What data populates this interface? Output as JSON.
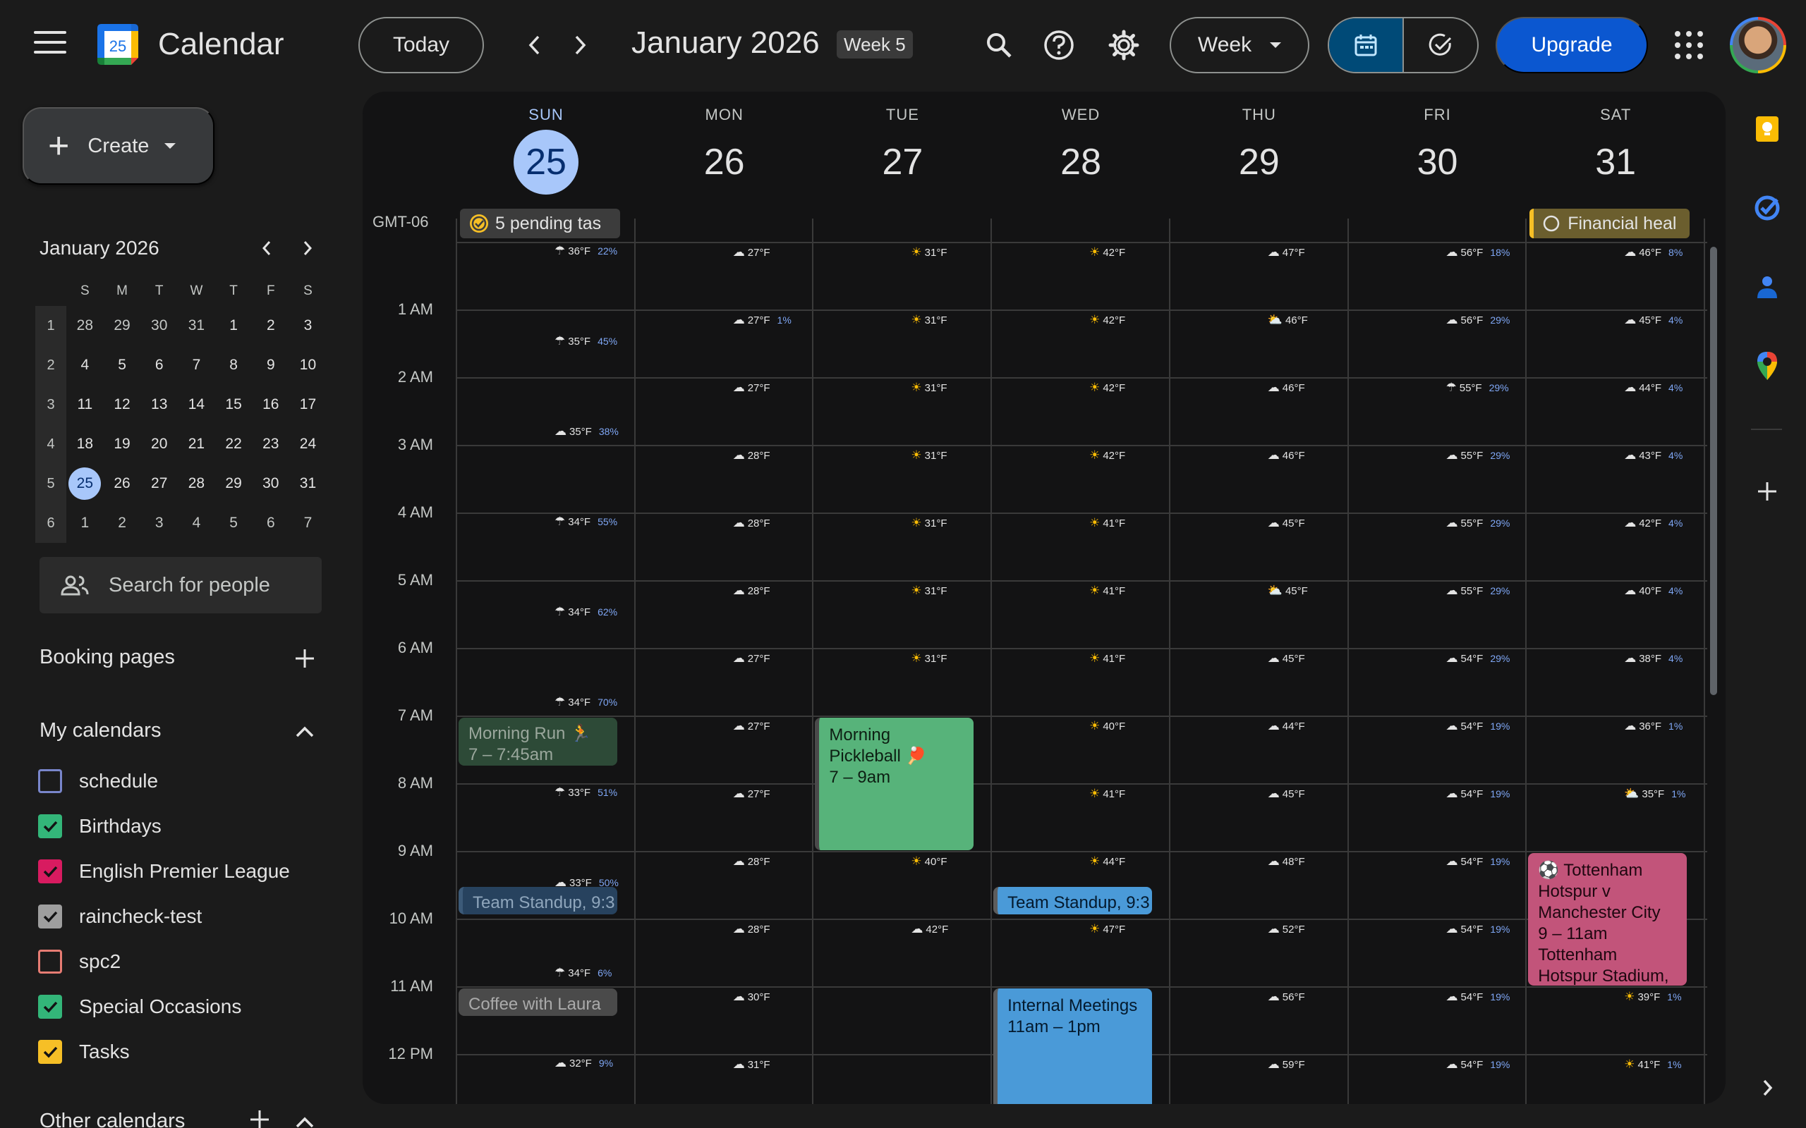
{
  "header": {
    "app_title": "Calendar",
    "logo_day": "25",
    "today_label": "Today",
    "period_title": "January 2026",
    "week_badge": "Week 5",
    "view_label": "Week",
    "upgrade_label": "Upgrade"
  },
  "sidebar": {
    "create_label": "Create",
    "mini_calendar": {
      "title": "January 2026",
      "weekday_headers": [
        "S",
        "M",
        "T",
        "W",
        "T",
        "F",
        "S"
      ],
      "weeks": [
        {
          "wk": "1",
          "days": [
            "28",
            "29",
            "30",
            "31",
            "1",
            "2",
            "3"
          ]
        },
        {
          "wk": "2",
          "days": [
            "4",
            "5",
            "6",
            "7",
            "8",
            "9",
            "10"
          ]
        },
        {
          "wk": "3",
          "days": [
            "11",
            "12",
            "13",
            "14",
            "15",
            "16",
            "17"
          ]
        },
        {
          "wk": "4",
          "days": [
            "18",
            "19",
            "20",
            "21",
            "22",
            "23",
            "24"
          ]
        },
        {
          "wk": "5",
          "days": [
            "25",
            "26",
            "27",
            "28",
            "29",
            "30",
            "31"
          ]
        },
        {
          "wk": "6",
          "days": [
            "1",
            "2",
            "3",
            "4",
            "5",
            "6",
            "7"
          ]
        }
      ],
      "selected_day": "25"
    },
    "search_people_placeholder": "Search for people",
    "booking_pages_label": "Booking pages",
    "my_calendars_label": "My calendars",
    "calendars": [
      {
        "name": "schedule",
        "color": "#7986cb",
        "checked": false
      },
      {
        "name": "Birthdays",
        "color": "#33b679",
        "checked": true
      },
      {
        "name": "English Premier League",
        "color": "#d81b60",
        "checked": true
      },
      {
        "name": "raincheck-test",
        "color": "#9e9e9e",
        "checked": true
      },
      {
        "name": "spc2",
        "color": "#e67c73",
        "checked": false
      },
      {
        "name": "Special Occasions",
        "color": "#33b679",
        "checked": true
      },
      {
        "name": "Tasks",
        "color": "#f6bf26",
        "checked": true
      }
    ],
    "other_calendars_label": "Other calendars"
  },
  "week": {
    "timezone": "GMT-06",
    "days": [
      {
        "dow": "SUN",
        "num": "25",
        "today": true
      },
      {
        "dow": "MON",
        "num": "26",
        "today": false
      },
      {
        "dow": "TUE",
        "num": "27",
        "today": false
      },
      {
        "dow": "WED",
        "num": "28",
        "today": false
      },
      {
        "dow": "THU",
        "num": "29",
        "today": false
      },
      {
        "dow": "FRI",
        "num": "30",
        "today": false
      },
      {
        "dow": "SAT",
        "num": "31",
        "today": false
      }
    ],
    "hours": [
      "1 AM",
      "2 AM",
      "3 AM",
      "4 AM",
      "5 AM",
      "6 AM",
      "7 AM",
      "8 AM",
      "9 AM",
      "10 AM",
      "11 AM",
      "12 PM"
    ],
    "allday": [
      {
        "day": 0,
        "text": "5 pending tas",
        "bg": "#3c3c3c",
        "fg": "#e3e3e3",
        "icon": "task-check-icon"
      },
      {
        "day": 6,
        "text": "Financial heal",
        "bg": "#6b5e2e",
        "fg": "#e3e3e3",
        "icon": "task-circle-icon"
      }
    ],
    "weather": [
      [
        [
          "rain",
          "36°F",
          "22%"
        ],
        [
          "rain",
          "35°F",
          "45%"
        ],
        [
          "cloud",
          "35°F",
          "38%"
        ],
        [
          "rain",
          "34°F",
          "55%"
        ],
        [
          "rain",
          "34°F",
          "62%"
        ],
        [
          "rain",
          "34°F",
          "70%"
        ],
        [
          "rain",
          "33°F",
          "51%"
        ],
        [
          "cloud",
          "33°F",
          "50%"
        ],
        [
          "rain",
          "34°F",
          "6%"
        ],
        [
          "cloud",
          "32°F",
          "9%"
        ]
      ],
      [
        [
          "cloud",
          "27°F",
          ""
        ],
        [
          "cloud",
          "27°F",
          "1%"
        ],
        [
          "cloud",
          "27°F",
          ""
        ],
        [
          "cloud",
          "28°F",
          ""
        ],
        [
          "cloud",
          "28°F",
          ""
        ],
        [
          "cloud",
          "28°F",
          ""
        ],
        [
          "cloud",
          "27°F",
          ""
        ],
        [
          "cloud",
          "27°F",
          ""
        ],
        [
          "cloud",
          "27°F",
          ""
        ],
        [
          "cloud",
          "28°F",
          ""
        ],
        [
          "cloud",
          "28°F",
          ""
        ],
        [
          "cloud",
          "30°F",
          ""
        ],
        [
          "cloud",
          "31°F",
          ""
        ]
      ],
      [
        [
          "sun",
          "31°F",
          ""
        ],
        [
          "sun",
          "31°F",
          ""
        ],
        [
          "sun",
          "31°F",
          ""
        ],
        [
          "sun",
          "31°F",
          ""
        ],
        [
          "sun",
          "31°F",
          ""
        ],
        [
          "sun",
          "31°F",
          ""
        ],
        [
          "sun",
          "31°F",
          ""
        ],
        [
          "sun",
          "33°F",
          ""
        ],
        [
          "sun",
          "36°F",
          ""
        ],
        [
          "sun",
          "40°F",
          ""
        ],
        [
          "cloud",
          "42°F",
          ""
        ]
      ],
      [
        [
          "sun",
          "42°F",
          ""
        ],
        [
          "sun",
          "42°F",
          ""
        ],
        [
          "sun",
          "42°F",
          ""
        ],
        [
          "sun",
          "42°F",
          ""
        ],
        [
          "sun",
          "41°F",
          ""
        ],
        [
          "sun",
          "41°F",
          ""
        ],
        [
          "sun",
          "41°F",
          ""
        ],
        [
          "sun",
          "40°F",
          ""
        ],
        [
          "sun",
          "41°F",
          ""
        ],
        [
          "sun",
          "44°F",
          ""
        ],
        [
          "sun",
          "47°F",
          ""
        ]
      ],
      [
        [
          "cloud",
          "47°F",
          ""
        ],
        [
          "pcloud",
          "46°F",
          ""
        ],
        [
          "cloud",
          "46°F",
          ""
        ],
        [
          "cloud",
          "46°F",
          ""
        ],
        [
          "cloud",
          "45°F",
          ""
        ],
        [
          "pcloud",
          "45°F",
          ""
        ],
        [
          "cloud",
          "45°F",
          ""
        ],
        [
          "cloud",
          "44°F",
          ""
        ],
        [
          "cloud",
          "45°F",
          ""
        ],
        [
          "cloud",
          "48°F",
          ""
        ],
        [
          "cloud",
          "52°F",
          ""
        ],
        [
          "cloud",
          "56°F",
          ""
        ],
        [
          "cloud",
          "59°F",
          ""
        ]
      ],
      [
        [
          "cloud",
          "56°F",
          "18%"
        ],
        [
          "cloud",
          "56°F",
          "29%"
        ],
        [
          "rain",
          "55°F",
          "29%"
        ],
        [
          "cloud",
          "55°F",
          "29%"
        ],
        [
          "cloud",
          "55°F",
          "29%"
        ],
        [
          "cloud",
          "55°F",
          "29%"
        ],
        [
          "cloud",
          "54°F",
          "29%"
        ],
        [
          "cloud",
          "54°F",
          "19%"
        ],
        [
          "cloud",
          "54°F",
          "19%"
        ],
        [
          "cloud",
          "54°F",
          "19%"
        ],
        [
          "cloud",
          "54°F",
          "19%"
        ],
        [
          "cloud",
          "54°F",
          "19%"
        ],
        [
          "cloud",
          "54°F",
          "19%"
        ]
      ],
      [
        [
          "cloud",
          "46°F",
          "8%"
        ],
        [
          "cloud",
          "45°F",
          "4%"
        ],
        [
          "cloud",
          "44°F",
          "4%"
        ],
        [
          "cloud",
          "43°F",
          "4%"
        ],
        [
          "cloud",
          "42°F",
          "4%"
        ],
        [
          "cloud",
          "40°F",
          "4%"
        ],
        [
          "cloud",
          "38°F",
          "4%"
        ],
        [
          "cloud",
          "36°F",
          "1%"
        ],
        [
          "pcloud",
          "35°F",
          "1%"
        ],
        [
          "cloud",
          "",
          "1%"
        ],
        [
          "cloud",
          "",
          "1%"
        ],
        [
          "sun",
          "39°F",
          "1%"
        ],
        [
          "sun",
          "41°F",
          "1%"
        ]
      ]
    ],
    "events": [
      {
        "day": 0,
        "start": 7.0,
        "end": 7.75,
        "title": "Morning Run 🏃",
        "time": "7 – 7:45am",
        "bg": "#2d4a37",
        "fg": "#9aa79c",
        "bar": "",
        "name": "event-morning-run"
      },
      {
        "day": 0,
        "start": 9.5,
        "end": 9.95,
        "title": "Team Standup, 9:3",
        "time": "",
        "bg": "#27425e",
        "fg": "#8fa6bc",
        "bar": "#3c5a78",
        "name": "event-team-standup-sun"
      },
      {
        "day": 0,
        "start": 11.0,
        "end": 11.45,
        "title": "Coffee with Laura",
        "time": "",
        "bg": "#4a4a4a",
        "fg": "#aaaaaa",
        "bar": "",
        "name": "event-coffee-with-laura"
      },
      {
        "day": 2,
        "start": 7.0,
        "end": 9.0,
        "title": "Morning Pickleball 🏓",
        "time": "7 – 9am",
        "bg": "#57b37a",
        "fg": "#0d1f13",
        "bar": "#4a4a4a",
        "name": "event-morning-pickleball"
      },
      {
        "day": 3,
        "start": 9.5,
        "end": 9.95,
        "title": "Team Standup, 9:3",
        "time": "",
        "bg": "#4a9ad8",
        "fg": "#041a2e",
        "bar": "#5d5d5d",
        "name": "event-team-standup-wed"
      },
      {
        "day": 3,
        "start": 11.0,
        "end": 13.0,
        "title": "Internal Meetings",
        "time": "11am – 1pm",
        "bg": "#4a9ad8",
        "fg": "#041a2e",
        "bar": "#5d5d5d",
        "name": "event-internal-meetings"
      },
      {
        "day": 6,
        "start": 9.0,
        "end": 11.0,
        "title": "⚽ Tottenham Hotspur v Manchester City",
        "time": "9 – 11am",
        "location": "Tottenham Hotspur Stadium,",
        "bg": "#c2547a",
        "fg": "#1f0710",
        "bar": "",
        "name": "event-tottenham-v-man-city"
      }
    ]
  }
}
